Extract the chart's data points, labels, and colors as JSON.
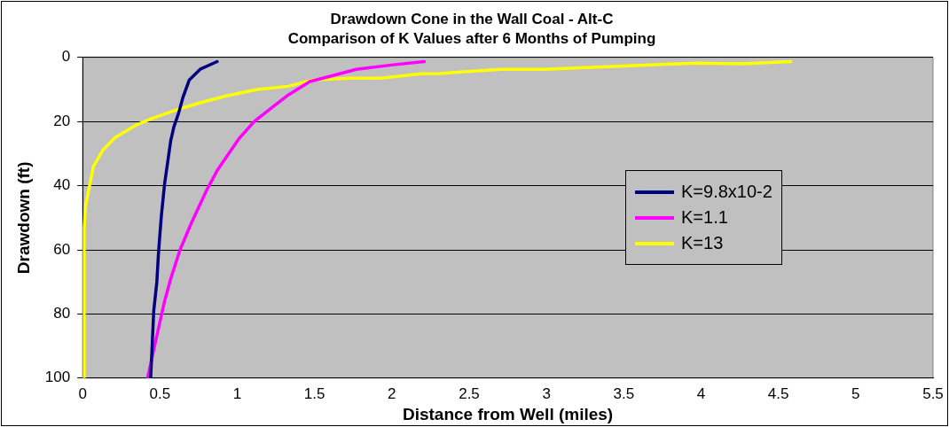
{
  "chart_data": {
    "type": "line",
    "title": "Drawdown Cone in the Wall Coal - Alt-C",
    "subtitle": "Comparison of K Values after 6 Months of Pumping",
    "xlabel": "Distance from Well (miles)",
    "ylabel": "Drawdown (ft)",
    "xlim": [
      0,
      5.5
    ],
    "xticks": [
      0,
      0.5,
      1,
      1.5,
      2,
      2.5,
      3,
      3.5,
      4,
      4.5,
      5,
      5.5
    ],
    "ylim": [
      100,
      0
    ],
    "yticks": [
      0,
      20,
      40,
      60,
      80,
      100
    ],
    "grid": "y",
    "legend": "right",
    "marker": "none",
    "line_style": "solid",
    "series": [
      {
        "name": "K=9.8x10-2",
        "color": "#000080",
        "x": [
          0.87,
          0.76,
          0.69,
          0.65,
          0.62,
          0.59,
          0.57,
          0.53,
          0.51,
          0.5,
          0.49,
          0.48,
          0.46,
          0.44
        ],
        "values": [
          1.3,
          3.7,
          7,
          12.3,
          17.5,
          21.7,
          25.9,
          39.5,
          49,
          55,
          61.5,
          70,
          79,
          100
        ]
      },
      {
        "name": "K=1.1",
        "color": "#ff00ff",
        "x": [
          2.21,
          2.01,
          1.77,
          1.63,
          1.47,
          1.33,
          1.23,
          1.11,
          1.01,
          0.87,
          0.8,
          0.7,
          0.63,
          0.57,
          0.53,
          0.47,
          0.42
        ],
        "values": [
          1.3,
          2.3,
          3.7,
          5.5,
          7.5,
          11.7,
          15.4,
          20,
          25.4,
          35.3,
          41.6,
          52,
          60,
          69,
          76,
          89,
          100
        ]
      },
      {
        "name": "K=13",
        "color": "#ffff00",
        "x": [
          4.58,
          4.26,
          3.96,
          2.98,
          2.71,
          2.31,
          2.19,
          1.93,
          1.73,
          1.49,
          1.33,
          1.13,
          0.93,
          0.77,
          0.63,
          0.45,
          0.35,
          0.21,
          0.13,
          0.07,
          0.02,
          0.01,
          0.01
        ],
        "values": [
          1.3,
          2,
          1.8,
          3.7,
          3.7,
          5,
          5.1,
          6.5,
          6.5,
          7,
          9,
          10,
          12,
          14,
          16,
          19,
          21,
          25,
          29,
          34,
          46,
          53,
          100
        ]
      }
    ]
  }
}
